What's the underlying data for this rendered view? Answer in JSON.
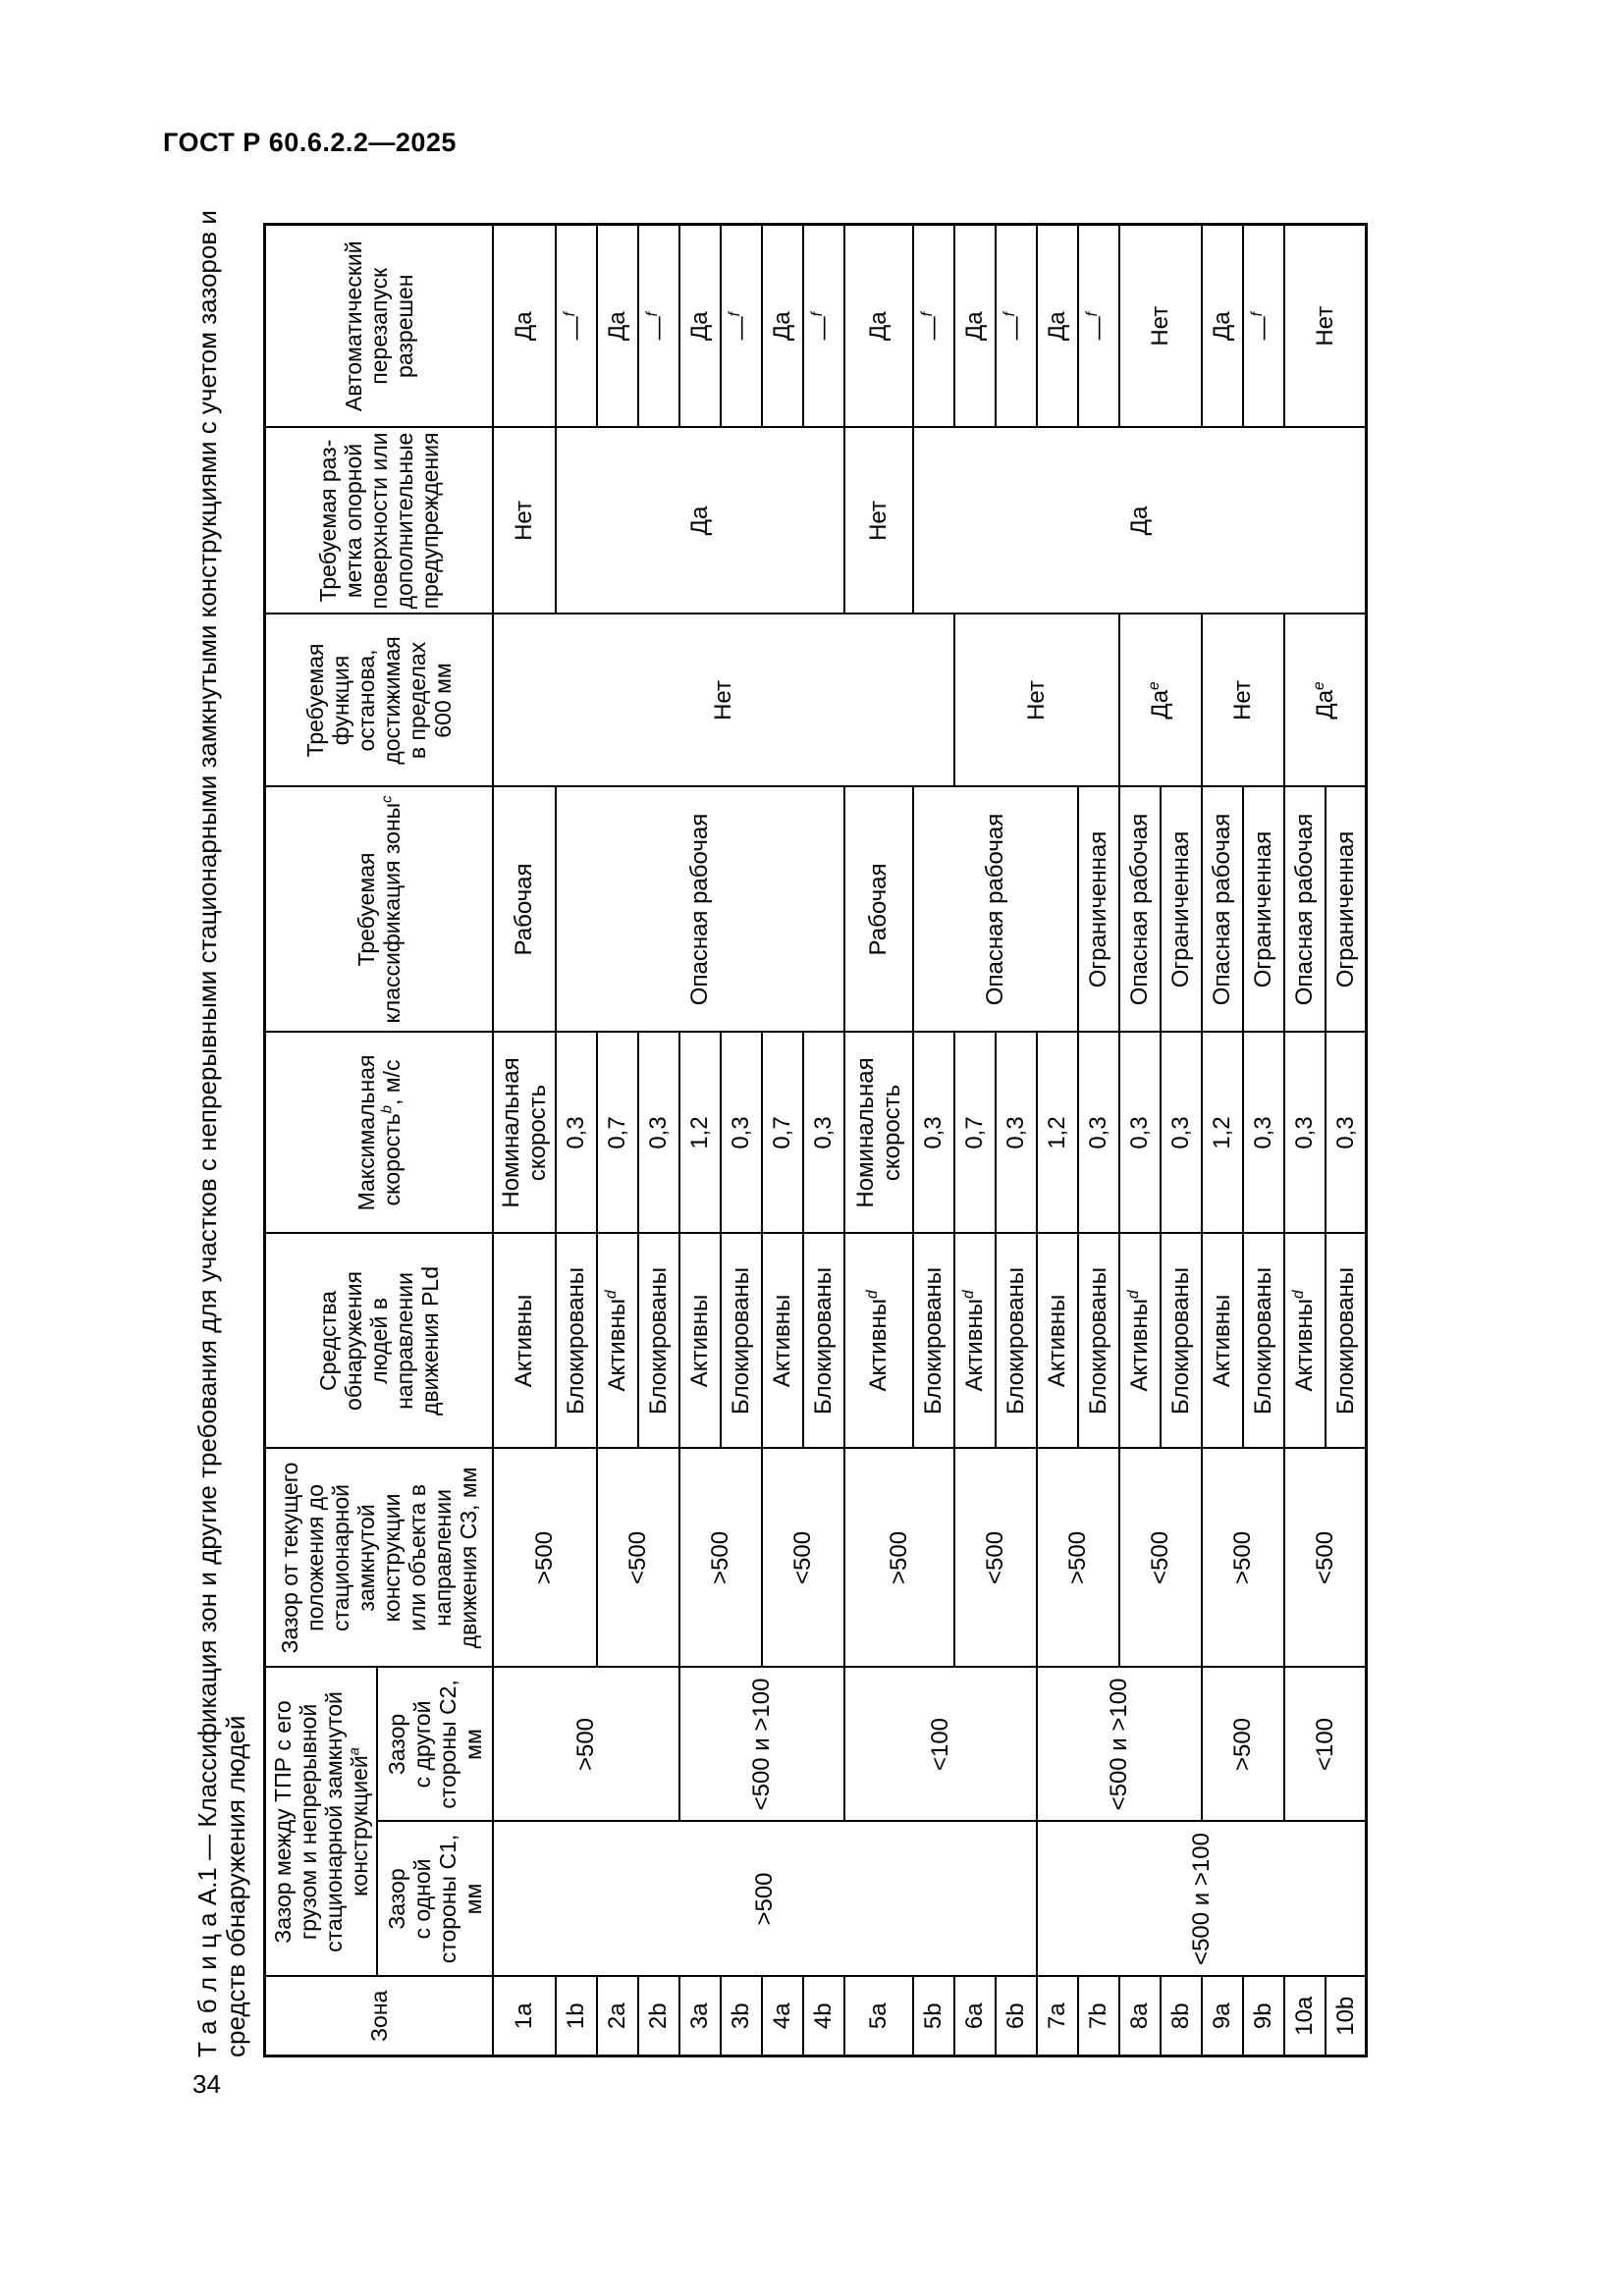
{
  "page": {
    "running_header": "ГОСТ Р 60.6.2.2—2025",
    "page_number": "34"
  },
  "table": {
    "caption_line1": "Т а б л и ц а  А.1 — Классификация зон и другие требования для участков с непрерывными стационарными замкнутыми конструкциями с учетом зазоров и",
    "caption_line2": "средств обнаружения людей",
    "header": {
      "zone": {
        "text": "Зона"
      },
      "gap_group": {
        "text": "Зазор между ТПР с его\nгрузом и непрерывной\nстационарной замкнутой\nконструкцией",
        "sup": "а"
      },
      "c1": {
        "text": "Зазор\nс одной\nстороны С1,\nмм"
      },
      "c2": {
        "text": "Зазор\nс другой\nстороны С2,\nмм"
      },
      "c3": {
        "text": "Зазор от текущего\nположения до\nстационарной\nзамкнутой\nконструкции\nили объекта в\nнаправлении\nдвижения С3, мм"
      },
      "detection": {
        "text": "Средства\nобнаружения\nлюдей в\nнаправлении\nдвижения PLd"
      },
      "speed": {
        "text": "Максимальная\nскорость",
        "sup": "b",
        "tail": ", м/с"
      },
      "classification": {
        "text": "Требуемая\nклассификация зоны",
        "sup": "с"
      },
      "stop": {
        "text": "Требуемая\nфункция\nостанова,\nдостижимая\nв пределах\n600 мм"
      },
      "marking": {
        "text": "Требуемая раз-\nметка опорной\nповерхности или\nдополнительные\nпредупреждения"
      },
      "restart": {
        "text": "Автоматический\nперезапуск\nразрешен"
      }
    },
    "body": {
      "zone": [
        {
          "text": "1a"
        },
        {
          "text": "1b"
        },
        {
          "text": "2a"
        },
        {
          "text": "2b"
        },
        {
          "text": "3a"
        },
        {
          "text": "3b"
        },
        {
          "text": "4a"
        },
        {
          "text": "4b"
        },
        {
          "text": "5a"
        },
        {
          "text": "5b"
        },
        {
          "text": "6a"
        },
        {
          "text": "6b"
        },
        {
          "text": "7a"
        },
        {
          "text": "7b"
        },
        {
          "text": "8a"
        },
        {
          "text": "8b"
        },
        {
          "text": "9a"
        },
        {
          "text": "9b"
        },
        {
          "text": "10a"
        },
        {
          "text": "10b"
        }
      ],
      "c1": [
        {
          "text": ">500",
          "rows": 12
        },
        {
          "text": "<500 и >100",
          "rows": 8
        }
      ],
      "c2": [
        {
          "text": ">500",
          "rows": 4
        },
        {
          "text": "<500 и >100",
          "rows": 4
        },
        {
          "text": "<100",
          "rows": 4
        },
        {
          "text": "<500 и >100",
          "rows": 4
        },
        {
          "text": ">500",
          "rows": 2
        },
        {
          "text": "<100",
          "rows": 2
        }
      ],
      "c3": [
        {
          "text": ">500",
          "rows": 2
        },
        {
          "text": "<500",
          "rows": 2
        },
        {
          "text": ">500",
          "rows": 2
        },
        {
          "text": "<500",
          "rows": 2
        },
        {
          "text": ">500",
          "rows": 2
        },
        {
          "text": "<500",
          "rows": 2
        },
        {
          "text": ">500",
          "rows": 2
        },
        {
          "text": "<500",
          "rows": 2
        },
        {
          "text": ">500",
          "rows": 2
        },
        {
          "text": "<500",
          "rows": 2
        }
      ],
      "detection": [
        {
          "text": "Активны"
        },
        {
          "text": "Блокированы"
        },
        {
          "text": "Активны",
          "sup": "d"
        },
        {
          "text": "Блокированы"
        },
        {
          "text": "Активны"
        },
        {
          "text": "Блокированы"
        },
        {
          "text": "Активны"
        },
        {
          "text": "Блокированы"
        },
        {
          "text": "Активны",
          "sup": "d"
        },
        {
          "text": "Блокированы"
        },
        {
          "text": "Активны",
          "sup": "d"
        },
        {
          "text": "Блокированы"
        },
        {
          "text": "Активны"
        },
        {
          "text": "Блокированы"
        },
        {
          "text": "Активны",
          "sup": "d"
        },
        {
          "text": "Блокированы"
        },
        {
          "text": "Активны"
        },
        {
          "text": "Блокированы"
        },
        {
          "text": "Активны",
          "sup": "d"
        },
        {
          "text": "Блокированы"
        }
      ],
      "speed": [
        {
          "text": "Номинальная\nскорость"
        },
        {
          "text": "0,3"
        },
        {
          "text": "0,7"
        },
        {
          "text": "0,3"
        },
        {
          "text": "1,2"
        },
        {
          "text": "0,3"
        },
        {
          "text": "0,7"
        },
        {
          "text": "0,3"
        },
        {
          "text": "Номинальная\nскорость"
        },
        {
          "text": "0,3"
        },
        {
          "text": "0,7"
        },
        {
          "text": "0,3"
        },
        {
          "text": "1,2"
        },
        {
          "text": "0,3"
        },
        {
          "text": "0,3"
        },
        {
          "text": "0,3"
        },
        {
          "text": "1,2"
        },
        {
          "text": "0,3"
        },
        {
          "text": "0,3"
        },
        {
          "text": "0,3"
        }
      ],
      "classification": [
        {
          "text": "Рабочая",
          "rows": 1
        },
        {
          "text": "Опасная рабочая",
          "rows": 7
        },
        {
          "text": "Рабочая",
          "rows": 1
        },
        {
          "text": "Опасная рабочая",
          "rows": 4
        },
        {
          "text": "Ограниченная",
          "rows": 1
        },
        {
          "text": "Опасная рабочая",
          "rows": 1
        },
        {
          "text": "Ограниченная",
          "rows": 1
        },
        {
          "text": "Опасная рабочая",
          "rows": 1
        },
        {
          "text": "Ограниченная",
          "rows": 1
        },
        {
          "text": "Опасная рабочая",
          "rows": 1
        },
        {
          "text": "Ограниченная",
          "rows": 1
        }
      ],
      "stop": [
        {
          "text": "Нет",
          "rows": 10
        },
        {
          "text": "Нет",
          "rows": 4
        },
        {
          "text": "Да",
          "sup": "е",
          "rows": 2
        },
        {
          "text": "Нет",
          "rows": 2
        },
        {
          "text": "Да",
          "sup": "е",
          "rows": 2
        }
      ],
      "marking": [
        {
          "text": "Нет",
          "rows": 1
        },
        {
          "text": "Да",
          "rows": 7
        },
        {
          "text": "Нет",
          "rows": 1
        },
        {
          "text": "Да",
          "rows": 11
        }
      ],
      "restart": [
        {
          "text": "Да"
        },
        {
          "text": "—",
          "sup": "f"
        },
        {
          "text": "Да"
        },
        {
          "text": "—",
          "sup": "f"
        },
        {
          "text": "Да"
        },
        {
          "text": "—",
          "sup": "f"
        },
        {
          "text": "Да"
        },
        {
          "text": "—",
          "sup": "f"
        },
        {
          "text": "Да"
        },
        {
          "text": "—",
          "sup": "f"
        },
        {
          "text": "Да"
        },
        {
          "text": "—",
          "sup": "f"
        },
        {
          "text": "Да"
        },
        {
          "text": "—",
          "sup": "f"
        },
        {
          "text": "Нет",
          "rows": 2
        },
        {
          "text": "Да"
        },
        {
          "text": "—",
          "sup": "f"
        },
        {
          "text": "Нет",
          "rows": 2
        }
      ]
    }
  }
}
